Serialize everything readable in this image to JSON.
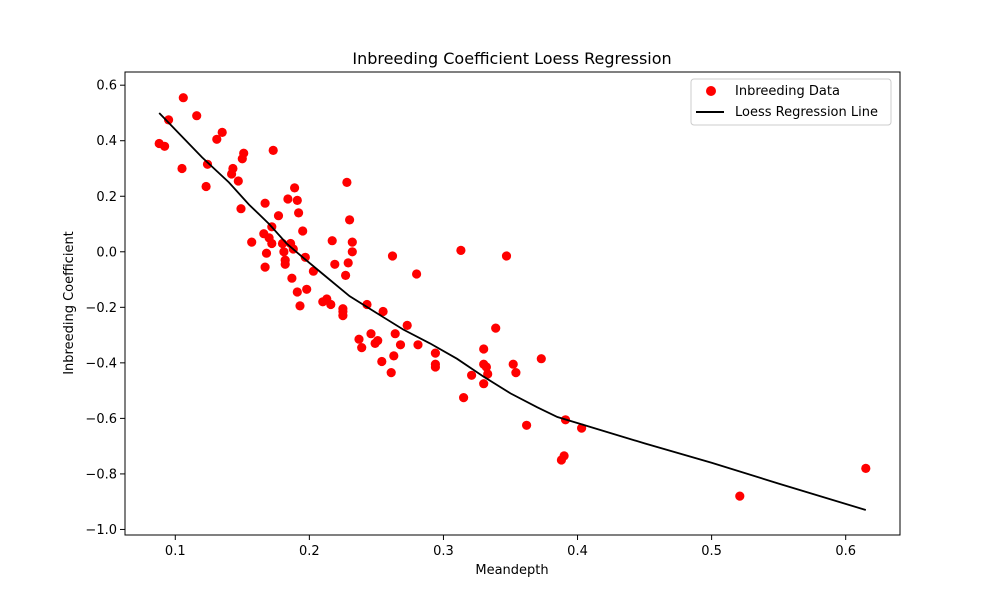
{
  "chart_data": {
    "type": "scatter",
    "title": "Inbreeding Coefficient Loess Regression",
    "xlabel": "Meandepth",
    "ylabel": "Inbreeding Coefficient",
    "xlim": [
      0.0625,
      0.6405
    ],
    "ylim": [
      -1.02,
      0.6475
    ],
    "xticks": [
      0.1,
      0.2,
      0.3,
      0.4,
      0.5,
      0.6
    ],
    "xtick_labels": [
      "0.1",
      "0.2",
      "0.3",
      "0.4",
      "0.5",
      "0.6"
    ],
    "yticks": [
      -1.0,
      -0.8,
      -0.6,
      -0.4,
      -0.2,
      0.0,
      0.2,
      0.4,
      0.6
    ],
    "ytick_labels": [
      "−1.0",
      "−0.8",
      "−0.6",
      "−0.4",
      "−0.2",
      "0.0",
      "0.2",
      "0.4",
      "0.6"
    ],
    "grid": false,
    "legend_position": "top-right",
    "colors": {
      "points": "#ff0000",
      "line": "#000000"
    },
    "series": [
      {
        "name": "Inbreeding Data",
        "kind": "scatter",
        "points": [
          [
            0.088,
            0.39
          ],
          [
            0.092,
            0.38
          ],
          [
            0.095,
            0.475
          ],
          [
            0.105,
            0.3
          ],
          [
            0.106,
            0.555
          ],
          [
            0.116,
            0.49
          ],
          [
            0.123,
            0.235
          ],
          [
            0.124,
            0.315
          ],
          [
            0.131,
            0.405
          ],
          [
            0.135,
            0.43
          ],
          [
            0.142,
            0.28
          ],
          [
            0.143,
            0.3
          ],
          [
            0.147,
            0.255
          ],
          [
            0.149,
            0.155
          ],
          [
            0.15,
            0.335
          ],
          [
            0.151,
            0.355
          ],
          [
            0.157,
            0.035
          ],
          [
            0.166,
            0.065
          ],
          [
            0.167,
            0.175
          ],
          [
            0.167,
            -0.055
          ],
          [
            0.168,
            -0.005
          ],
          [
            0.17,
            0.05
          ],
          [
            0.172,
            0.09
          ],
          [
            0.172,
            0.03
          ],
          [
            0.173,
            0.365
          ],
          [
            0.177,
            0.13
          ],
          [
            0.18,
            0.03
          ],
          [
            0.181,
            0.0
          ],
          [
            0.182,
            -0.03
          ],
          [
            0.182,
            -0.045
          ],
          [
            0.184,
            0.19
          ],
          [
            0.186,
            0.03
          ],
          [
            0.187,
            -0.095
          ],
          [
            0.188,
            0.01
          ],
          [
            0.189,
            0.23
          ],
          [
            0.191,
            0.185
          ],
          [
            0.191,
            -0.145
          ],
          [
            0.192,
            0.14
          ],
          [
            0.193,
            -0.195
          ],
          [
            0.195,
            0.075
          ],
          [
            0.197,
            -0.02
          ],
          [
            0.198,
            -0.135
          ],
          [
            0.203,
            -0.07
          ],
          [
            0.21,
            -0.18
          ],
          [
            0.213,
            -0.17
          ],
          [
            0.216,
            -0.19
          ],
          [
            0.217,
            0.04
          ],
          [
            0.219,
            -0.045
          ],
          [
            0.225,
            -0.205
          ],
          [
            0.225,
            -0.215
          ],
          [
            0.225,
            -0.23
          ],
          [
            0.227,
            -0.085
          ],
          [
            0.228,
            0.25
          ],
          [
            0.229,
            -0.04
          ],
          [
            0.23,
            0.115
          ],
          [
            0.232,
            0.0
          ],
          [
            0.232,
            0.035
          ],
          [
            0.237,
            -0.315
          ],
          [
            0.239,
            -0.345
          ],
          [
            0.243,
            -0.19
          ],
          [
            0.246,
            -0.295
          ],
          [
            0.249,
            -0.33
          ],
          [
            0.251,
            -0.32
          ],
          [
            0.254,
            -0.395
          ],
          [
            0.255,
            -0.215
          ],
          [
            0.261,
            -0.435
          ],
          [
            0.262,
            -0.015
          ],
          [
            0.263,
            -0.375
          ],
          [
            0.264,
            -0.295
          ],
          [
            0.268,
            -0.335
          ],
          [
            0.273,
            -0.265
          ],
          [
            0.28,
            -0.08
          ],
          [
            0.281,
            -0.335
          ],
          [
            0.294,
            -0.365
          ],
          [
            0.294,
            -0.405
          ],
          [
            0.294,
            -0.415
          ],
          [
            0.313,
            0.005
          ],
          [
            0.315,
            -0.525
          ],
          [
            0.321,
            -0.445
          ],
          [
            0.33,
            -0.35
          ],
          [
            0.33,
            -0.405
          ],
          [
            0.33,
            -0.475
          ],
          [
            0.332,
            -0.415
          ],
          [
            0.333,
            -0.44
          ],
          [
            0.339,
            -0.275
          ],
          [
            0.347,
            -0.015
          ],
          [
            0.352,
            -0.405
          ],
          [
            0.354,
            -0.435
          ],
          [
            0.362,
            -0.625
          ],
          [
            0.373,
            -0.385
          ],
          [
            0.388,
            -0.75
          ],
          [
            0.39,
            -0.735
          ],
          [
            0.391,
            -0.605
          ],
          [
            0.403,
            -0.635
          ],
          [
            0.521,
            -0.88
          ],
          [
            0.615,
            -0.78
          ]
        ]
      },
      {
        "name": "Loess Regression Line",
        "kind": "line",
        "points": [
          [
            0.088,
            0.5
          ],
          [
            0.1,
            0.44
          ],
          [
            0.12,
            0.34
          ],
          [
            0.14,
            0.25
          ],
          [
            0.155,
            0.17
          ],
          [
            0.17,
            0.1
          ],
          [
            0.183,
            0.03
          ],
          [
            0.195,
            -0.02
          ],
          [
            0.21,
            -0.08
          ],
          [
            0.23,
            -0.16
          ],
          [
            0.25,
            -0.22
          ],
          [
            0.27,
            -0.28
          ],
          [
            0.29,
            -0.33
          ],
          [
            0.31,
            -0.385
          ],
          [
            0.33,
            -0.45
          ],
          [
            0.35,
            -0.51
          ],
          [
            0.37,
            -0.56
          ],
          [
            0.385,
            -0.595
          ],
          [
            0.402,
            -0.62
          ],
          [
            0.45,
            -0.69
          ],
          [
            0.5,
            -0.76
          ],
          [
            0.55,
            -0.835
          ],
          [
            0.615,
            -0.93
          ]
        ]
      }
    ]
  }
}
